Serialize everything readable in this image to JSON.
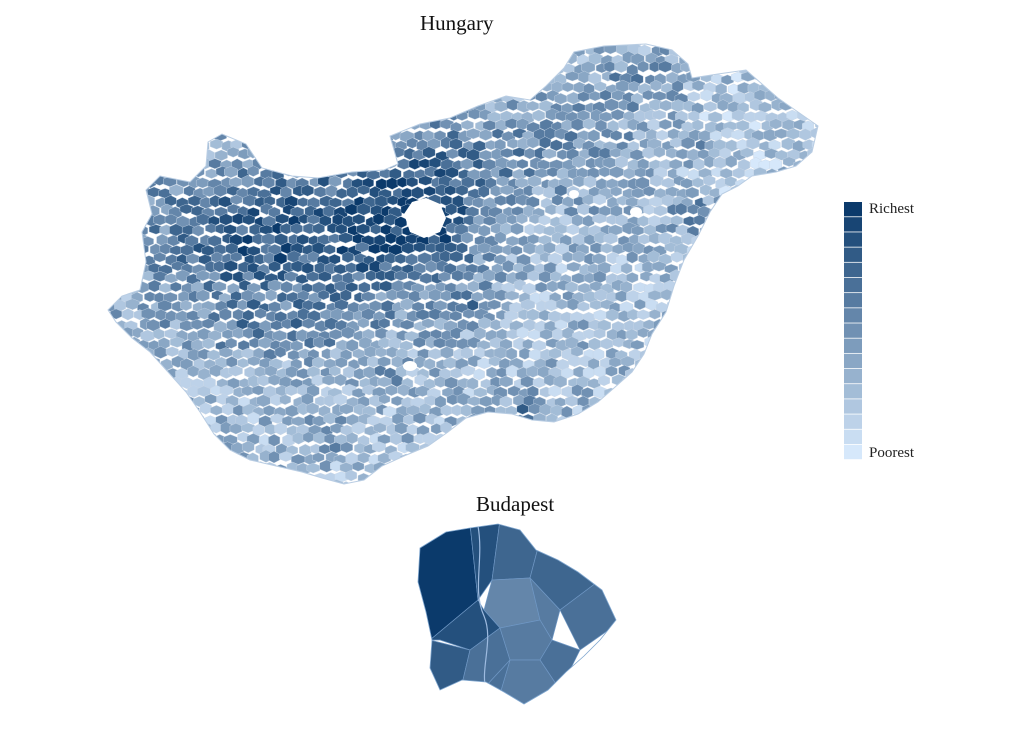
{
  "titles": {
    "country": "Hungary",
    "capital": "Budapest"
  },
  "legend": {
    "top_label": "Richest",
    "bottom_label": "Poorest",
    "steps": 17,
    "color_richest": "#0b3a6b",
    "color_poorest": "#d6e8fb"
  },
  "colors": {
    "border": "#c8d6e6",
    "background": "#ffffff"
  }
}
